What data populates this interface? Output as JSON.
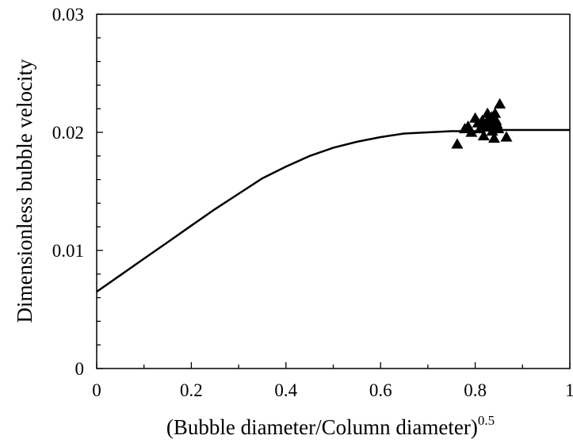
{
  "chart_data": {
    "type": "scatter",
    "title": "",
    "xlabel": "(Bubble diameter/Column diameter)",
    "xlabel_superscript": "0.5",
    "ylabel": "Dimensionless bubble velocity",
    "xlim": [
      0,
      1
    ],
    "ylim": [
      0,
      0.03
    ],
    "x_ticks": [
      0,
      0.2,
      0.4,
      0.6,
      0.8,
      1
    ],
    "x_tick_labels": [
      "0",
      "0.2",
      "0.4",
      "0.6",
      "0.8",
      "1"
    ],
    "y_ticks": [
      0,
      0.01,
      0.02,
      0.03
    ],
    "y_tick_labels": [
      "0",
      "0.01",
      "0.02",
      "0.03"
    ],
    "grid": false,
    "series": [
      {
        "kind": "line",
        "color": "#000000",
        "x": [
          0,
          0.05,
          0.1,
          0.15,
          0.2,
          0.25,
          0.3,
          0.35,
          0.4,
          0.45,
          0.5,
          0.55,
          0.6,
          0.65,
          0.7,
          0.75,
          0.8,
          0.85,
          0.9,
          0.95,
          1.0
        ],
        "y": [
          0.0065,
          0.0079,
          0.0093,
          0.0107,
          0.0121,
          0.0135,
          0.0148,
          0.0161,
          0.0171,
          0.018,
          0.0187,
          0.0192,
          0.0196,
          0.0199,
          0.02,
          0.0201,
          0.0201,
          0.0202,
          0.0202,
          0.0202,
          0.0202
        ]
      },
      {
        "kind": "scatter",
        "marker": "triangle",
        "color": "#000000",
        "x": [
          0.762,
          0.778,
          0.785,
          0.792,
          0.8,
          0.806,
          0.81,
          0.815,
          0.818,
          0.822,
          0.826,
          0.829,
          0.832,
          0.835,
          0.838,
          0.84,
          0.842,
          0.844,
          0.846,
          0.849,
          0.852,
          0.866,
          0.836
        ],
        "y": [
          0.019,
          0.0203,
          0.0205,
          0.02,
          0.0212,
          0.0208,
          0.0203,
          0.021,
          0.0197,
          0.0205,
          0.0216,
          0.0212,
          0.0208,
          0.0213,
          0.0205,
          0.0195,
          0.0216,
          0.021,
          0.0207,
          0.0203,
          0.0224,
          0.0196,
          0.0201
        ]
      }
    ]
  }
}
